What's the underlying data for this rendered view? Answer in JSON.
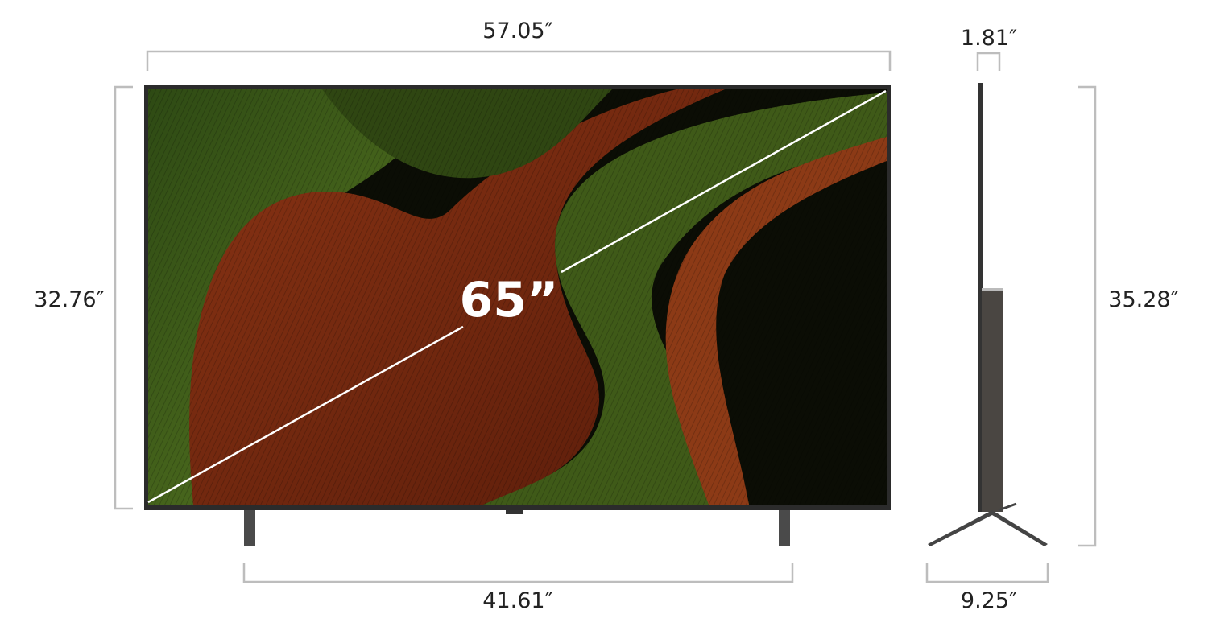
{
  "diagonal_label": "65”",
  "dimensions": {
    "width": "57.05″",
    "height": "32.76″",
    "stand_width": "41.61″",
    "depth": "1.81″",
    "height_with_stand": "35.28″",
    "stand_depth": "9.25″"
  },
  "colors": {
    "bracket": "#bdbdbd",
    "frame": "#2b2b2b",
    "screen_green": "#4d6a1c",
    "screen_red": "#7a2a10"
  }
}
